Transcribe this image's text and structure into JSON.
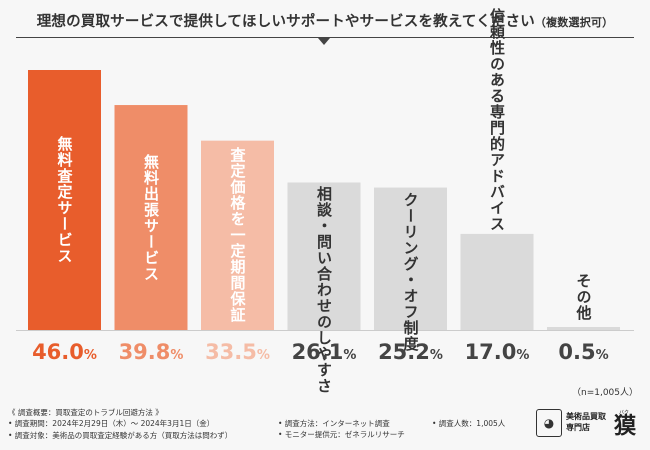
{
  "title": {
    "main": "理想の買取サービスで提供してほしいサポートやサービスを教えてください",
    "sub": "（複数選択可）"
  },
  "chart_data": {
    "type": "bar",
    "title": "理想の買取サービスで提供してほしいサポートやサービスを教えてください（複数選択可）",
    "categories": [
      "無料査定サービス",
      "無料出張サービス",
      "査定価格を一定期間保証",
      "相談・問い合わせのしやすさ",
      "クーリング・オフ制度",
      "信頼性のある専門的アドバイス",
      "その他"
    ],
    "values": [
      46.0,
      39.8,
      33.5,
      26.1,
      25.2,
      17.0,
      0.5
    ],
    "value_suffix": "%",
    "ylim": [
      0,
      50
    ],
    "colors": [
      "#e85d2c",
      "#ef8d68",
      "#f5bca6",
      "#dadada",
      "#dadada",
      "#dadada",
      "#dadada"
    ],
    "label_colors": [
      "#e85d2c",
      "#ef8d68",
      "#f5bca6",
      "#444444",
      "#444444",
      "#444444",
      "#444444"
    ],
    "grid": false,
    "legend": "none"
  },
  "sample_size": "（n=1,005人）",
  "notes": {
    "heading": "《 調査概要：買取査定のトラブル回避方法 》",
    "period": "• 調査期間：2024年2月29日（木）～ 2024年3月1日（金）",
    "target": "• 調査対象：美術品の買取査定経験がある方（買取方法は問わず）",
    "method": "• 調査方法：インターネット調査",
    "provider": "• モニター提供元：ゼネラルリサーチ",
    "count": "• 調査人数：1,005人"
  },
  "logo": {
    "line1": "美術品買取",
    "line2": "専門店",
    "kanji": "獏",
    "ruby": "バク",
    "icon": "baku-mascot-icon"
  }
}
